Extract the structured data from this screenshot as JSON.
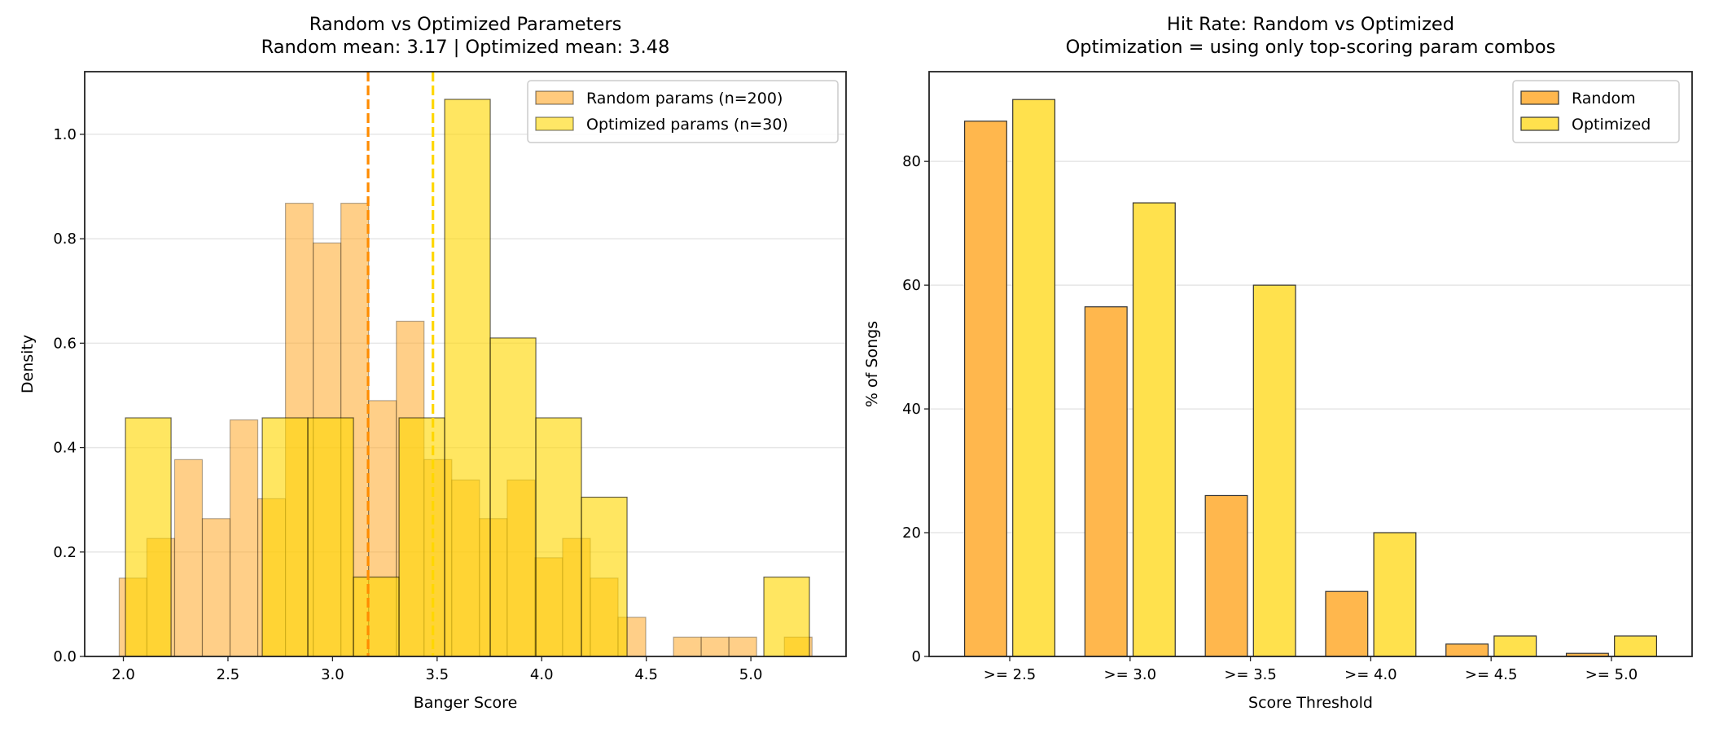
{
  "chart_data": [
    {
      "type": "histogram",
      "title": [
        "Random vs Optimized Parameters",
        "Random mean: 3.17 | Optimized mean: 3.48"
      ],
      "xlabel": "Banger Score",
      "ylabel": "Density",
      "xlim": [
        1.815,
        5.455
      ],
      "ylim": [
        0,
        1.12
      ],
      "xticks": [
        "2.0",
        "2.5",
        "3.0",
        "3.5",
        "4.0",
        "4.5",
        "5.0"
      ],
      "yticks": [
        "0.0",
        "0.2",
        "0.4",
        "0.6",
        "0.8",
        "1.0"
      ],
      "grid": "horizontal",
      "legend_position": "top-right",
      "series": [
        {
          "name": "Random params (n=200)",
          "color": "#ffa726",
          "bin_start": 1.98,
          "bin_width": 0.1325,
          "density": [
            0.15,
            0.226,
            0.377,
            0.264,
            0.453,
            0.302,
            0.868,
            0.792,
            0.868,
            0.49,
            0.642,
            0.377,
            0.338,
            0.264,
            0.338,
            0.189,
            0.226,
            0.15,
            0.075,
            0,
            0.037,
            0.037,
            0.037,
            0,
            0.037
          ]
        },
        {
          "name": "Optimized params (n=30)",
          "color": "#ffd700",
          "bin_start": 2.01,
          "bin_width": 0.218,
          "density": [
            0.457,
            0,
            0,
            0.457,
            0.457,
            0.152,
            0.457,
            1.067,
            0.61,
            0.457,
            0.305,
            0,
            0,
            0,
            0.152
          ]
        }
      ],
      "vlines": [
        {
          "value": 3.17,
          "color": "#ff8c00"
        },
        {
          "value": 3.48,
          "color": "#ffd700"
        }
      ]
    },
    {
      "type": "bar",
      "title": [
        "Hit Rate: Random vs Optimized",
        "Optimization = using only top-scoring param combos"
      ],
      "xlabel": "Score Threshold",
      "ylabel": "% of Songs",
      "categories": [
        ">= 2.5",
        ">= 3.0",
        ">= 3.5",
        ">= 4.0",
        ">= 4.5",
        ">= 5.0"
      ],
      "ylim": [
        0,
        94.5
      ],
      "yticks": [
        "0",
        "20",
        "40",
        "60",
        "80"
      ],
      "grid": "horizontal",
      "legend_position": "top-right",
      "series": [
        {
          "name": "Random",
          "color": "#ffb74d",
          "values": [
            86.5,
            56.5,
            26.0,
            10.5,
            2.0,
            0.5
          ]
        },
        {
          "name": "Optimized",
          "color": "#ffe14d",
          "values": [
            90.0,
            73.3,
            60.0,
            20.0,
            3.3,
            3.3
          ]
        }
      ]
    }
  ]
}
